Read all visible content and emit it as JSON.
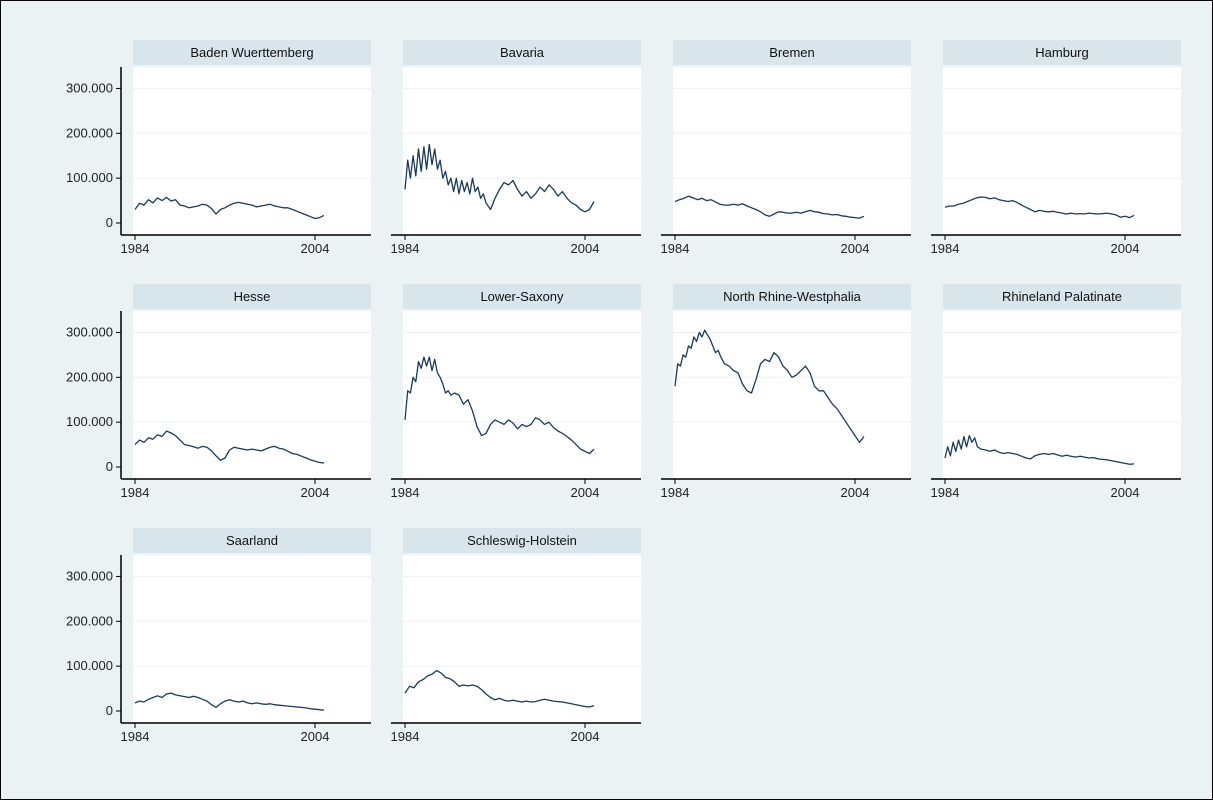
{
  "chart_data": {
    "type": "line",
    "layout": "small-multiples 4 columns",
    "grid": true,
    "legend": "none",
    "colors": {
      "background": "#eaf2f3",
      "plot_background": "#ffffff",
      "strip_background": "#d8e6ec",
      "line": "#1a3a5c",
      "gridline": "#eef2f4",
      "axis": "#000000"
    },
    "ylim": [
      0,
      330000
    ],
    "y_ticks": [
      0,
      100000,
      200000,
      300000
    ],
    "y_tick_labels": [
      "0",
      "100.000",
      "200.000",
      "300.000"
    ],
    "xlim": [
      1984,
      2010
    ],
    "x_ticks": [
      1984,
      2004
    ],
    "x_tick_labels": [
      "1984",
      "2004"
    ],
    "panels": [
      {
        "title": "Baden Wuerttemberg",
        "x": [
          1984,
          1984.5,
          1985,
          1985.5,
          1986,
          1986.5,
          1987,
          1987.5,
          1988,
          1988.5,
          1989,
          1989.5,
          1990,
          1990.5,
          1991,
          1991.5,
          1992,
          1992.5,
          1993,
          1993.5,
          1994,
          1994.5,
          1995,
          1995.5,
          1996,
          1996.5,
          1997,
          1997.5,
          1998,
          1998.5,
          1999,
          1999.5,
          2000,
          2000.5,
          2001,
          2001.5,
          2002,
          2002.5,
          2003,
          2003.5,
          2004,
          2004.5,
          2005
        ],
        "y": [
          30000,
          44000,
          40000,
          52000,
          45000,
          56000,
          50000,
          57000,
          49000,
          52000,
          40000,
          38000,
          34000,
          36000,
          38000,
          42000,
          40000,
          32000,
          20000,
          30000,
          34000,
          40000,
          44000,
          46000,
          44000,
          42000,
          40000,
          36000,
          38000,
          40000,
          42000,
          38000,
          36000,
          34000,
          34000,
          30000,
          26000,
          22000,
          18000,
          14000,
          10000,
          12000,
          17000
        ]
      },
      {
        "title": "Bavaria",
        "x": [
          1984,
          1984.3,
          1984.6,
          1984.9,
          1985.2,
          1985.5,
          1985.8,
          1986.1,
          1986.4,
          1986.7,
          1987,
          1987.3,
          1987.6,
          1987.9,
          1988.2,
          1988.5,
          1988.8,
          1989.1,
          1989.4,
          1989.7,
          1990,
          1990.3,
          1990.6,
          1990.9,
          1991.2,
          1991.5,
          1991.8,
          1992.1,
          1992.4,
          1992.7,
          1993,
          1993.5,
          1994,
          1994.5,
          1995,
          1995.5,
          1996,
          1996.5,
          1997,
          1997.5,
          1998,
          1998.5,
          1999,
          1999.5,
          2000,
          2000.5,
          2001,
          2001.5,
          2002,
          2002.5,
          2003,
          2003.5,
          2004,
          2004.5,
          2005
        ],
        "y": [
          75000,
          140000,
          100000,
          150000,
          105000,
          165000,
          115000,
          170000,
          120000,
          175000,
          130000,
          165000,
          120000,
          140000,
          100000,
          115000,
          85000,
          100000,
          70000,
          100000,
          65000,
          95000,
          70000,
          90000,
          65000,
          100000,
          70000,
          80000,
          55000,
          65000,
          45000,
          30000,
          55000,
          75000,
          90000,
          85000,
          95000,
          75000,
          60000,
          70000,
          55000,
          65000,
          80000,
          70000,
          85000,
          75000,
          60000,
          70000,
          55000,
          45000,
          40000,
          30000,
          25000,
          30000,
          48000
        ]
      },
      {
        "title": "Bremen",
        "x": [
          1984,
          1984.5,
          1985,
          1985.5,
          1986,
          1986.5,
          1987,
          1987.5,
          1988,
          1988.5,
          1989,
          1989.5,
          1990,
          1990.5,
          1991,
          1991.5,
          1992,
          1992.5,
          1993,
          1993.5,
          1994,
          1994.5,
          1995,
          1995.5,
          1996,
          1996.5,
          1997,
          1997.5,
          1998,
          1998.5,
          1999,
          1999.5,
          2000,
          2000.5,
          2001,
          2001.5,
          2002,
          2002.5,
          2003,
          2003.5,
          2004,
          2004.5,
          2005
        ],
        "y": [
          48000,
          52000,
          55000,
          60000,
          56000,
          52000,
          55000,
          50000,
          52000,
          47000,
          42000,
          40000,
          40000,
          42000,
          40000,
          43000,
          38000,
          34000,
          30000,
          25000,
          18000,
          15000,
          20000,
          25000,
          24000,
          22000,
          22000,
          24000,
          22000,
          25000,
          28000,
          25000,
          24000,
          21000,
          20000,
          18000,
          19000,
          16000,
          15000,
          13000,
          12000,
          11000,
          15000
        ]
      },
      {
        "title": "Hamburg",
        "x": [
          1984,
          1984.5,
          1985,
          1985.5,
          1986,
          1986.5,
          1987,
          1987.5,
          1988,
          1988.5,
          1989,
          1989.5,
          1990,
          1990.5,
          1991,
          1991.5,
          1992,
          1992.5,
          1993,
          1993.5,
          1994,
          1994.5,
          1995,
          1995.5,
          1996,
          1996.5,
          1997,
          1997.5,
          1998,
          1998.5,
          1999,
          1999.5,
          2000,
          2000.5,
          2001,
          2001.5,
          2002,
          2002.5,
          2003,
          2003.5,
          2004,
          2004.5,
          2005
        ],
        "y": [
          35000,
          38000,
          38000,
          42000,
          44000,
          48000,
          52000,
          56000,
          58000,
          57000,
          54000,
          56000,
          52000,
          50000,
          48000,
          50000,
          46000,
          40000,
          35000,
          30000,
          25000,
          28000,
          26000,
          25000,
          26000,
          24000,
          22000,
          20000,
          22000,
          20000,
          21000,
          20000,
          22000,
          21000,
          20000,
          21000,
          22000,
          20000,
          18000,
          13000,
          15000,
          12000,
          17000
        ]
      },
      {
        "title": "Hesse",
        "x": [
          1984,
          1984.5,
          1985,
          1985.5,
          1986,
          1986.5,
          1987,
          1987.5,
          1988,
          1988.5,
          1989,
          1989.5,
          1990,
          1990.5,
          1991,
          1991.5,
          1992,
          1992.5,
          1993,
          1993.5,
          1994,
          1994.5,
          1995,
          1995.5,
          1996,
          1996.5,
          1997,
          1997.5,
          1998,
          1998.5,
          1999,
          1999.5,
          2000,
          2000.5,
          2001,
          2001.5,
          2002,
          2002.5,
          2003,
          2003.5,
          2004,
          2004.5,
          2005
        ],
        "y": [
          50000,
          60000,
          55000,
          65000,
          62000,
          72000,
          68000,
          80000,
          76000,
          70000,
          60000,
          50000,
          48000,
          45000,
          42000,
          46000,
          44000,
          36000,
          25000,
          15000,
          20000,
          38000,
          44000,
          42000,
          40000,
          38000,
          40000,
          38000,
          36000,
          40000,
          44000,
          46000,
          42000,
          40000,
          35000,
          30000,
          28000,
          24000,
          20000,
          16000,
          13000,
          10000,
          9000
        ]
      },
      {
        "title": "Lower-Saxony",
        "x": [
          1984,
          1984.3,
          1984.6,
          1984.9,
          1985.2,
          1985.5,
          1985.8,
          1986.1,
          1986.4,
          1986.7,
          1987,
          1987.3,
          1987.6,
          1987.9,
          1988.2,
          1988.5,
          1988.8,
          1989.1,
          1989.5,
          1990,
          1990.5,
          1991,
          1991.5,
          1992,
          1992.5,
          1993,
          1993.5,
          1994,
          1994.5,
          1995,
          1995.5,
          1996,
          1996.5,
          1997,
          1997.5,
          1998,
          1998.5,
          1999,
          1999.5,
          2000,
          2000.5,
          2001,
          2001.5,
          2002,
          2002.5,
          2003,
          2003.5,
          2004,
          2004.5,
          2005
        ],
        "y": [
          105000,
          170000,
          165000,
          200000,
          190000,
          235000,
          220000,
          245000,
          225000,
          245000,
          215000,
          240000,
          210000,
          200000,
          185000,
          165000,
          170000,
          160000,
          165000,
          160000,
          140000,
          150000,
          125000,
          90000,
          70000,
          75000,
          95000,
          105000,
          100000,
          95000,
          105000,
          98000,
          85000,
          95000,
          90000,
          95000,
          110000,
          105000,
          95000,
          100000,
          88000,
          80000,
          75000,
          68000,
          60000,
          50000,
          40000,
          35000,
          30000,
          40000
        ]
      },
      {
        "title": "North Rhine-Westphalia",
        "x": [
          1984,
          1984.3,
          1984.6,
          1984.9,
          1985.2,
          1985.5,
          1985.8,
          1986.1,
          1986.4,
          1986.7,
          1987,
          1987.3,
          1987.6,
          1987.9,
          1988.2,
          1988.5,
          1988.8,
          1989.1,
          1989.5,
          1990,
          1990.5,
          1991,
          1991.5,
          1992,
          1992.5,
          1993,
          1993.5,
          1994,
          1994.5,
          1995,
          1995.5,
          1996,
          1996.5,
          1997,
          1997.5,
          1998,
          1998.5,
          1999,
          1999.5,
          2000,
          2000.5,
          2001,
          2001.5,
          2002,
          2002.5,
          2003,
          2003.5,
          2004,
          2004.5,
          2005
        ],
        "y": [
          180000,
          230000,
          225000,
          250000,
          245000,
          270000,
          265000,
          290000,
          280000,
          300000,
          290000,
          305000,
          295000,
          285000,
          270000,
          255000,
          260000,
          245000,
          230000,
          225000,
          215000,
          210000,
          185000,
          170000,
          165000,
          195000,
          230000,
          240000,
          235000,
          255000,
          245000,
          225000,
          215000,
          200000,
          205000,
          215000,
          225000,
          210000,
          180000,
          170000,
          170000,
          155000,
          140000,
          130000,
          115000,
          100000,
          85000,
          70000,
          55000,
          68000
        ]
      },
      {
        "title": "Rhineland Palatinate",
        "x": [
          1984,
          1984.3,
          1984.6,
          1984.9,
          1985.2,
          1985.5,
          1985.8,
          1986.1,
          1986.4,
          1986.7,
          1987,
          1987.3,
          1987.6,
          1988,
          1988.5,
          1989,
          1989.5,
          1990,
          1990.5,
          1991,
          1991.5,
          1992,
          1992.5,
          1993,
          1993.5,
          1994,
          1994.5,
          1995,
          1995.5,
          1996,
          1996.5,
          1997,
          1997.5,
          1998,
          1998.5,
          1999,
          1999.5,
          2000,
          2000.5,
          2001,
          2001.5,
          2002,
          2002.5,
          2003,
          2003.5,
          2004,
          2004.5,
          2005
        ],
        "y": [
          20000,
          45000,
          25000,
          55000,
          35000,
          60000,
          40000,
          68000,
          45000,
          70000,
          55000,
          65000,
          45000,
          40000,
          38000,
          35000,
          38000,
          33000,
          30000,
          32000,
          30000,
          28000,
          24000,
          20000,
          18000,
          25000,
          28000,
          30000,
          28000,
          30000,
          27000,
          24000,
          26000,
          24000,
          22000,
          24000,
          22000,
          20000,
          21000,
          18000,
          17000,
          16000,
          14000,
          12000,
          10000,
          8000,
          6000,
          7000
        ]
      },
      {
        "title": "Saarland",
        "x": [
          1984,
          1984.5,
          1985,
          1985.5,
          1986,
          1986.5,
          1987,
          1987.5,
          1988,
          1988.5,
          1989,
          1989.5,
          1990,
          1990.5,
          1991,
          1991.5,
          1992,
          1992.5,
          1993,
          1993.5,
          1994,
          1994.5,
          1995,
          1995.5,
          1996,
          1996.5,
          1997,
          1997.5,
          1998,
          1998.5,
          1999,
          1999.5,
          2000,
          2000.5,
          2001,
          2001.5,
          2002,
          2002.5,
          2003,
          2003.5,
          2004,
          2004.5,
          2005
        ],
        "y": [
          18000,
          22000,
          20000,
          26000,
          30000,
          34000,
          30000,
          38000,
          40000,
          36000,
          34000,
          32000,
          30000,
          33000,
          30000,
          26000,
          22000,
          14000,
          8000,
          16000,
          22000,
          25000,
          22000,
          20000,
          22000,
          18000,
          16000,
          18000,
          16000,
          15000,
          16000,
          14000,
          13000,
          12000,
          11000,
          10000,
          9000,
          8000,
          7000,
          5000,
          4000,
          3000,
          2000
        ]
      },
      {
        "title": "Schleswig-Holstein",
        "x": [
          1984,
          1984.5,
          1985,
          1985.5,
          1986,
          1986.5,
          1987,
          1987.5,
          1988,
          1988.5,
          1989,
          1989.5,
          1990,
          1990.5,
          1991,
          1991.5,
          1992,
          1992.5,
          1993,
          1993.5,
          1994,
          1994.5,
          1995,
          1995.5,
          1996,
          1996.5,
          1997,
          1997.5,
          1998,
          1998.5,
          1999,
          1999.5,
          2000,
          2000.5,
          2001,
          2001.5,
          2002,
          2002.5,
          2003,
          2003.5,
          2004,
          2004.5,
          2005
        ],
        "y": [
          40000,
          55000,
          52000,
          65000,
          70000,
          78000,
          82000,
          90000,
          85000,
          75000,
          72000,
          65000,
          55000,
          58000,
          56000,
          58000,
          55000,
          48000,
          38000,
          30000,
          25000,
          28000,
          24000,
          22000,
          24000,
          22000,
          20000,
          22000,
          20000,
          21000,
          24000,
          26000,
          24000,
          22000,
          21000,
          20000,
          18000,
          16000,
          14000,
          12000,
          10000,
          9000,
          12000
        ]
      }
    ]
  }
}
